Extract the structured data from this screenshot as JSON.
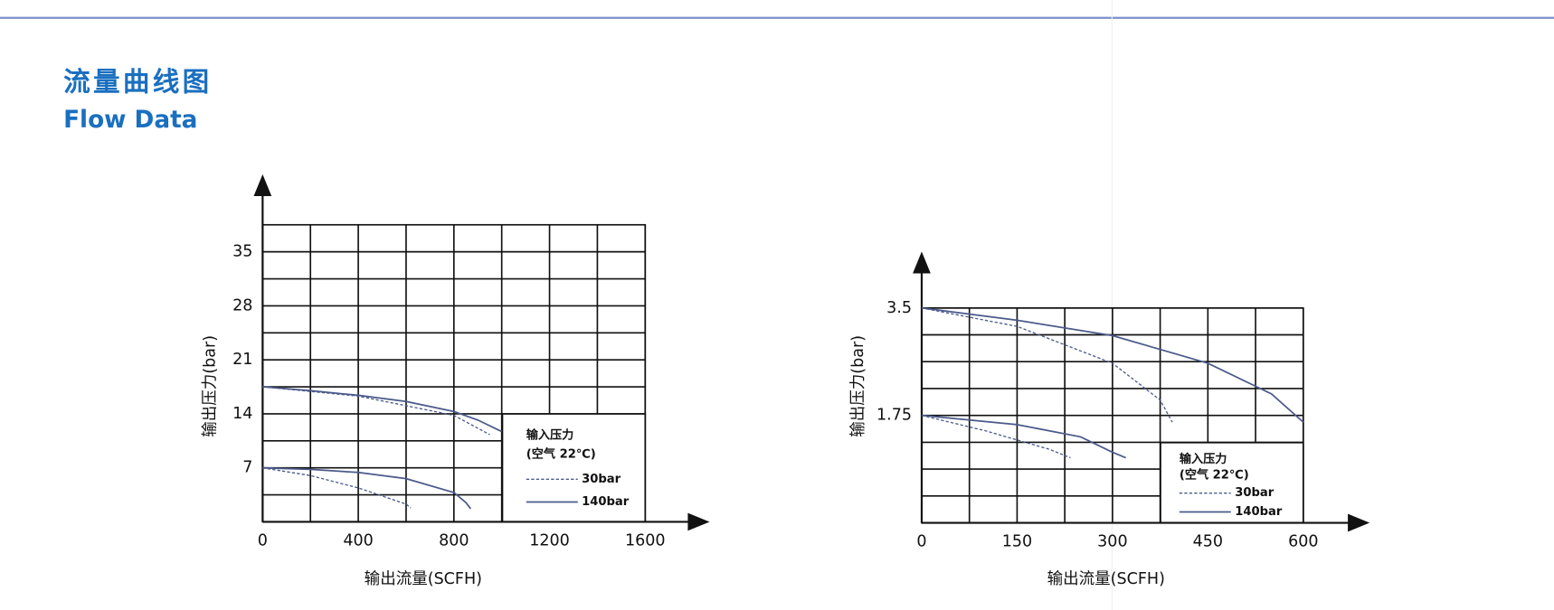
{
  "header": {
    "title": "流量曲线图",
    "subtitle": "Flow Data"
  },
  "chart_data": [
    {
      "type": "line",
      "xlabel": "输出流量(SCFH)",
      "ylabel": "输出压力(bar)",
      "xlim": [
        0,
        1600
      ],
      "xticks": [
        0,
        400,
        800,
        1200,
        1600
      ],
      "xminorticks": [
        200,
        600,
        1000,
        1400
      ],
      "ylim": [
        0,
        38.5
      ],
      "yticks": [
        7,
        14,
        21,
        28,
        35
      ],
      "yminorticks": [
        3.5,
        10.5,
        17.5,
        24.5,
        31.5
      ],
      "grid": true,
      "legend": {
        "title": "输入压力",
        "subtitle": "(空气 22℃)",
        "entries": [
          {
            "name": "30bar",
            "style": "dotted"
          },
          {
            "name": "140bar",
            "style": "solid"
          }
        ]
      },
      "series": [
        {
          "style": "solid",
          "color": "#4a5a8a",
          "x": [
            0,
            200,
            400,
            600,
            800,
            900,
            1000
          ],
          "values": [
            17.5,
            17,
            16.4,
            15.6,
            14.3,
            13.2,
            11.7
          ]
        },
        {
          "style": "dotted",
          "color": "#4a5a8a",
          "x": [
            0,
            400,
            800,
            950
          ],
          "values": [
            17.5,
            16.3,
            13.8,
            11.3
          ]
        },
        {
          "style": "solid",
          "color": "#4a5a8a",
          "x": [
            0,
            200,
            400,
            600,
            800,
            850,
            870
          ],
          "values": [
            7,
            6.8,
            6.4,
            5.6,
            3.8,
            2.5,
            1.7
          ]
        },
        {
          "style": "dotted",
          "color": "#4a5a8a",
          "x": [
            0,
            200,
            400,
            600,
            620
          ],
          "values": [
            7,
            6,
            4.4,
            2.3,
            1.8
          ]
        }
      ]
    },
    {
      "type": "line",
      "xlabel": "输出流量(SCFH)",
      "ylabel": "输出压力(bar)",
      "xlim": [
        0,
        600
      ],
      "xticks": [
        0,
        150,
        300,
        450,
        600
      ],
      "xminorticks": [
        75,
        225,
        375,
        525
      ],
      "ylim": [
        0,
        3.5
      ],
      "yticks": [
        1.75,
        3.5
      ],
      "yminorticks": [
        0.4375,
        0.875,
        1.3125,
        2.1875,
        2.625,
        3.0625
      ],
      "grid": true,
      "legend": {
        "title": "输入压力",
        "subtitle": "(空气 22℃)",
        "entries": [
          {
            "name": "30bar",
            "style": "dotted"
          },
          {
            "name": "140bar",
            "style": "solid"
          }
        ]
      },
      "series": [
        {
          "style": "solid",
          "color": "#4a5a8a",
          "x": [
            0,
            150,
            300,
            450,
            550,
            600
          ],
          "values": [
            3.5,
            3.3,
            3.05,
            2.6,
            2.1,
            1.64
          ]
        },
        {
          "style": "dotted",
          "color": "#4a5a8a",
          "x": [
            0,
            150,
            300,
            375,
            394
          ],
          "values": [
            3.5,
            3.2,
            2.6,
            2.0,
            1.64
          ]
        },
        {
          "style": "solid",
          "color": "#4a5a8a",
          "x": [
            0,
            150,
            250,
            300,
            321
          ],
          "values": [
            1.75,
            1.6,
            1.4,
            1.15,
            1.06
          ]
        },
        {
          "style": "dotted",
          "color": "#4a5a8a",
          "x": [
            0,
            100,
            200,
            234
          ],
          "values": [
            1.75,
            1.5,
            1.2,
            1.06
          ]
        }
      ]
    }
  ]
}
